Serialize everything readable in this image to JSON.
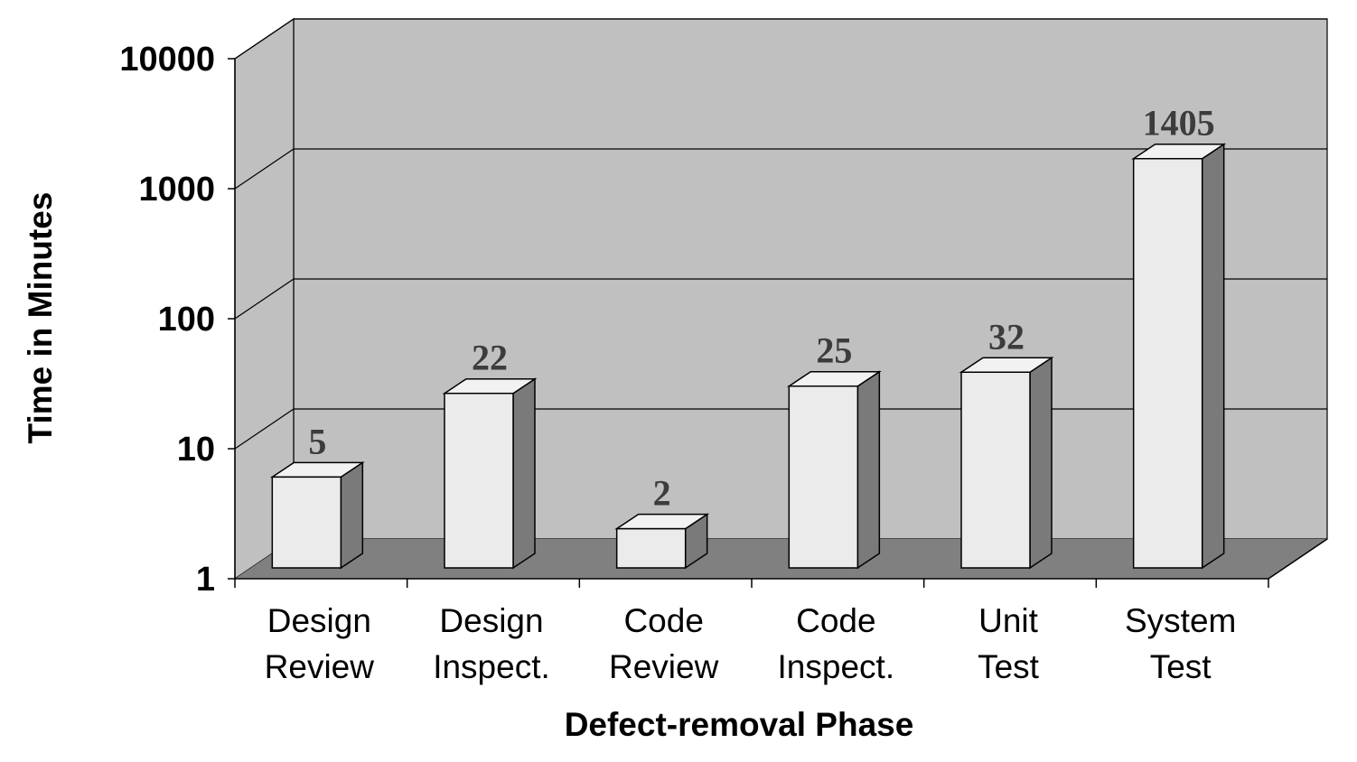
{
  "chart_data": {
    "type": "bar",
    "style": "3d",
    "title": "",
    "xlabel": "Defect-removal Phase",
    "ylabel": "Time in Minutes",
    "yscale": "log",
    "ylim": [
      1,
      10000
    ],
    "yticks": [
      "1",
      "10",
      "100",
      "1000",
      "10000"
    ],
    "categories": [
      [
        "Design",
        "Review"
      ],
      [
        "Design",
        "Inspect."
      ],
      [
        "Code",
        "Review"
      ],
      [
        "Code",
        "Inspect."
      ],
      [
        "Unit",
        "Test"
      ],
      [
        "System",
        "Test"
      ]
    ],
    "values": [
      5,
      22,
      2,
      25,
      32,
      1405
    ],
    "data_labels": [
      "5",
      "22",
      "2",
      "25",
      "32",
      "1405"
    ],
    "grid": true,
    "legend": "none",
    "colors": {
      "wall": "#c0c0c0",
      "floor": "#808080",
      "bar_front": "#ebebeb",
      "bar_top": "#f2f2f2",
      "bar_side": "#7a7a7a",
      "data_label": "#3c3c3c"
    }
  }
}
